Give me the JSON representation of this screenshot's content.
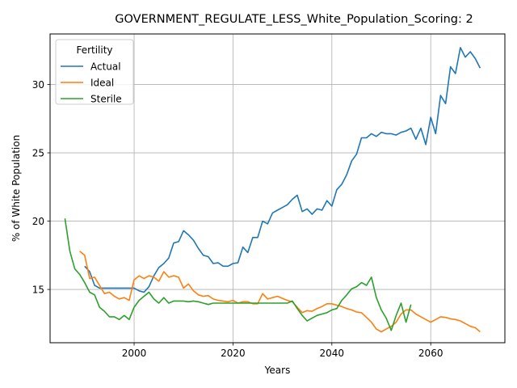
{
  "chart_data": {
    "type": "line",
    "title": "GOVERNMENT_REGULATE_LESS_White_Population_Scoring: 2",
    "xlabel": "Years",
    "ylabel": "% of White Population",
    "xlim": [
      1983,
      2075
    ],
    "ylim": [
      11.1,
      33.7
    ],
    "xticks": [
      2000,
      2020,
      2040,
      2060
    ],
    "yticks": [
      15,
      20,
      25,
      30
    ],
    "grid": true,
    "legend": {
      "title": "Fertility",
      "placement": "upper-left"
    },
    "series": [
      {
        "name": "Actual",
        "color": "#1f77b4",
        "points": [
          [
            1990,
            16.7
          ],
          [
            1991,
            16.3
          ],
          [
            1992,
            15.3
          ],
          [
            1993,
            15.1
          ],
          [
            1994,
            15.1
          ],
          [
            1995,
            15.1
          ],
          [
            1996,
            15.1
          ],
          [
            1997,
            15.1
          ],
          [
            1998,
            15.1
          ],
          [
            1999,
            15.1
          ],
          [
            2000,
            15.1
          ],
          [
            2001,
            14.9
          ],
          [
            2002,
            14.8
          ],
          [
            2003,
            15.2
          ],
          [
            2004,
            16.0
          ],
          [
            2005,
            16.6
          ],
          [
            2006,
            16.9
          ],
          [
            2007,
            17.3
          ],
          [
            2008,
            18.4
          ],
          [
            2009,
            18.5
          ],
          [
            2010,
            19.3
          ],
          [
            2011,
            19.0
          ],
          [
            2012,
            18.6
          ],
          [
            2013,
            18.0
          ],
          [
            2014,
            17.5
          ],
          [
            2015,
            17.4
          ],
          [
            2016,
            16.9
          ],
          [
            2017,
            16.95
          ],
          [
            2018,
            16.7
          ],
          [
            2019,
            16.7
          ],
          [
            2020,
            16.9
          ],
          [
            2021,
            16.95
          ],
          [
            2022,
            18.1
          ],
          [
            2023,
            17.7
          ],
          [
            2024,
            18.8
          ],
          [
            2025,
            18.8
          ],
          [
            2026,
            20.0
          ],
          [
            2027,
            19.8
          ],
          [
            2028,
            20.6
          ],
          [
            2029,
            20.8
          ],
          [
            2030,
            21.0
          ],
          [
            2031,
            21.2
          ],
          [
            2032,
            21.6
          ],
          [
            2033,
            21.9
          ],
          [
            2034,
            20.7
          ],
          [
            2035,
            20.9
          ],
          [
            2036,
            20.5
          ],
          [
            2037,
            20.9
          ],
          [
            2038,
            20.8
          ],
          [
            2039,
            21.5
          ],
          [
            2040,
            21.1
          ],
          [
            2041,
            22.3
          ],
          [
            2042,
            22.7
          ],
          [
            2043,
            23.4
          ],
          [
            2044,
            24.4
          ],
          [
            2045,
            24.9
          ],
          [
            2046,
            26.1
          ],
          [
            2047,
            26.1
          ],
          [
            2048,
            26.4
          ],
          [
            2049,
            26.2
          ],
          [
            2050,
            26.5
          ],
          [
            2051,
            26.4
          ],
          [
            2052,
            26.4
          ],
          [
            2053,
            26.3
          ],
          [
            2054,
            26.5
          ],
          [
            2055,
            26.6
          ],
          [
            2056,
            26.8
          ],
          [
            2057,
            26.0
          ],
          [
            2058,
            26.8
          ],
          [
            2059,
            25.6
          ],
          [
            2060,
            27.6
          ],
          [
            2061,
            26.4
          ],
          [
            2062,
            29.2
          ],
          [
            2063,
            28.6
          ],
          [
            2064,
            31.3
          ],
          [
            2065,
            30.8
          ],
          [
            2066,
            32.7
          ],
          [
            2067,
            32.0
          ],
          [
            2068,
            32.4
          ],
          [
            2069,
            31.9
          ],
          [
            2070,
            31.2
          ]
        ]
      },
      {
        "name": "Ideal",
        "color": "#ff7f0e",
        "points": [
          [
            1989,
            17.8
          ],
          [
            1990,
            17.5
          ],
          [
            1991,
            15.8
          ],
          [
            1992,
            15.9
          ],
          [
            1993,
            15.3
          ],
          [
            1994,
            14.7
          ],
          [
            1995,
            14.8
          ],
          [
            1996,
            14.5
          ],
          [
            1997,
            14.3
          ],
          [
            1998,
            14.4
          ],
          [
            1999,
            14.2
          ],
          [
            2000,
            15.7
          ],
          [
            2001,
            16.0
          ],
          [
            2002,
            15.8
          ],
          [
            2003,
            16.0
          ],
          [
            2004,
            15.9
          ],
          [
            2005,
            15.6
          ],
          [
            2006,
            16.3
          ],
          [
            2007,
            15.9
          ],
          [
            2008,
            16.0
          ],
          [
            2009,
            15.9
          ],
          [
            2010,
            15.1
          ],
          [
            2011,
            15.4
          ],
          [
            2012,
            14.9
          ],
          [
            2013,
            14.6
          ],
          [
            2014,
            14.5
          ],
          [
            2015,
            14.55
          ],
          [
            2016,
            14.3
          ],
          [
            2017,
            14.2
          ],
          [
            2018,
            14.15
          ],
          [
            2019,
            14.1
          ],
          [
            2020,
            14.2
          ],
          [
            2021,
            14.0
          ],
          [
            2022,
            14.1
          ],
          [
            2023,
            14.1
          ],
          [
            2024,
            13.95
          ],
          [
            2025,
            13.95
          ],
          [
            2026,
            14.7
          ],
          [
            2027,
            14.3
          ],
          [
            2028,
            14.4
          ],
          [
            2029,
            14.5
          ],
          [
            2030,
            14.35
          ],
          [
            2031,
            14.2
          ],
          [
            2032,
            14.1
          ],
          [
            2033,
            13.7
          ],
          [
            2034,
            13.3
          ],
          [
            2035,
            13.45
          ],
          [
            2036,
            13.4
          ],
          [
            2037,
            13.6
          ],
          [
            2038,
            13.75
          ],
          [
            2039,
            13.95
          ],
          [
            2040,
            13.95
          ],
          [
            2041,
            13.85
          ],
          [
            2042,
            13.75
          ],
          [
            2043,
            13.6
          ],
          [
            2044,
            13.5
          ],
          [
            2045,
            13.35
          ],
          [
            2046,
            13.3
          ],
          [
            2047,
            12.95
          ],
          [
            2048,
            12.6
          ],
          [
            2049,
            12.1
          ],
          [
            2050,
            11.9
          ],
          [
            2051,
            12.1
          ],
          [
            2052,
            12.3
          ],
          [
            2053,
            12.6
          ],
          [
            2054,
            13.2
          ],
          [
            2055,
            13.5
          ],
          [
            2056,
            13.5
          ],
          [
            2057,
            13.2
          ],
          [
            2058,
            13.0
          ],
          [
            2059,
            12.8
          ],
          [
            2060,
            12.6
          ],
          [
            2061,
            12.8
          ],
          [
            2062,
            13.0
          ],
          [
            2063,
            12.95
          ],
          [
            2064,
            12.85
          ],
          [
            2065,
            12.8
          ],
          [
            2066,
            12.7
          ],
          [
            2067,
            12.5
          ],
          [
            2068,
            12.3
          ],
          [
            2069,
            12.2
          ],
          [
            2070,
            11.9
          ]
        ]
      },
      {
        "name": "Sterile",
        "color": "#2ca02c",
        "points": [
          [
            1986,
            20.2
          ],
          [
            1987,
            17.8
          ],
          [
            1988,
            16.5
          ],
          [
            1989,
            16.1
          ],
          [
            1990,
            15.5
          ],
          [
            1991,
            14.8
          ],
          [
            1992,
            14.6
          ],
          [
            1993,
            13.7
          ],
          [
            1994,
            13.4
          ],
          [
            1995,
            13.0
          ],
          [
            1996,
            13.0
          ],
          [
            1997,
            12.8
          ],
          [
            1998,
            13.1
          ],
          [
            1999,
            12.8
          ],
          [
            2000,
            13.7
          ],
          [
            2001,
            14.2
          ],
          [
            2002,
            14.5
          ],
          [
            2003,
            14.8
          ],
          [
            2004,
            14.3
          ],
          [
            2005,
            14.0
          ],
          [
            2006,
            14.4
          ],
          [
            2007,
            14.0
          ],
          [
            2008,
            14.15
          ],
          [
            2009,
            14.15
          ],
          [
            2010,
            14.15
          ],
          [
            2011,
            14.1
          ],
          [
            2012,
            14.15
          ],
          [
            2013,
            14.1
          ],
          [
            2014,
            14.0
          ],
          [
            2015,
            13.9
          ],
          [
            2016,
            14.0
          ],
          [
            2017,
            14.0
          ],
          [
            2018,
            14.0
          ],
          [
            2019,
            14.0
          ],
          [
            2020,
            14.0
          ],
          [
            2021,
            14.0
          ],
          [
            2022,
            14.0
          ],
          [
            2023,
            14.0
          ],
          [
            2024,
            14.0
          ],
          [
            2025,
            14.0
          ],
          [
            2026,
            14.0
          ],
          [
            2027,
            14.0
          ],
          [
            2028,
            14.0
          ],
          [
            2029,
            14.0
          ],
          [
            2030,
            14.0
          ],
          [
            2031,
            14.0
          ],
          [
            2032,
            14.15
          ],
          [
            2033,
            13.6
          ],
          [
            2034,
            13.1
          ],
          [
            2035,
            12.7
          ],
          [
            2036,
            12.9
          ],
          [
            2037,
            13.1
          ],
          [
            2038,
            13.2
          ],
          [
            2039,
            13.3
          ],
          [
            2040,
            13.5
          ],
          [
            2041,
            13.6
          ],
          [
            2042,
            14.2
          ],
          [
            2043,
            14.6
          ],
          [
            2044,
            15.05
          ],
          [
            2045,
            15.2
          ],
          [
            2046,
            15.5
          ],
          [
            2047,
            15.3
          ],
          [
            2048,
            15.9
          ],
          [
            2049,
            14.4
          ],
          [
            2050,
            13.5
          ],
          [
            2051,
            12.9
          ],
          [
            2052,
            12.0
          ],
          [
            2053,
            13.1
          ],
          [
            2054,
            14.0
          ],
          [
            2055,
            12.6
          ],
          [
            2056,
            13.9
          ]
        ]
      }
    ]
  }
}
